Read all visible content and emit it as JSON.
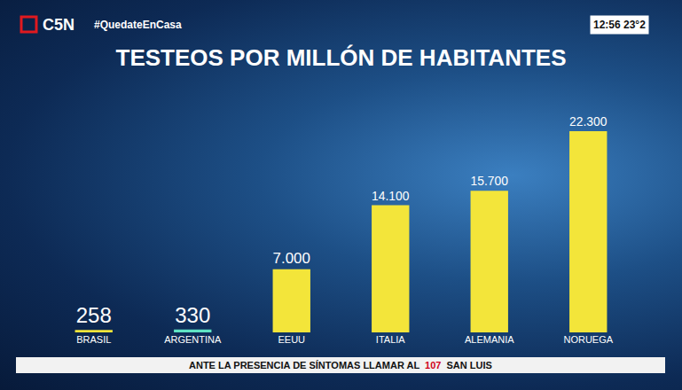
{
  "chart_data": {
    "type": "bar",
    "title": "TESTEOS POR MILLÓN DE HABITANTES",
    "categories": [
      "BRASIL",
      "ARGENTINA",
      "EEUU",
      "ITALIA",
      "ALEMANIA",
      "NORUEGA"
    ],
    "values": [
      258,
      330,
      7000,
      14100,
      15700,
      22300
    ],
    "value_labels": [
      "258",
      "330",
      "7.000",
      "14.100",
      "15.700",
      "22.300"
    ],
    "colors": [
      "#f3e53a",
      "#5fe3c4",
      "#f3e53a",
      "#f3e53a",
      "#f3e53a",
      "#f3e53a"
    ],
    "ylim": [
      0,
      22300
    ],
    "grid": false,
    "data_labels": true,
    "tick_labels": "x",
    "annotations": {
      "channel": "C5N",
      "hashtag": "#QuedateEnCasa",
      "clock": "12:56 23°2",
      "ticker": [
        "ANTE LA PRESENCIA DE SÍNTOMAS LLAMAR AL",
        "107",
        "SAN LUIS"
      ]
    }
  }
}
